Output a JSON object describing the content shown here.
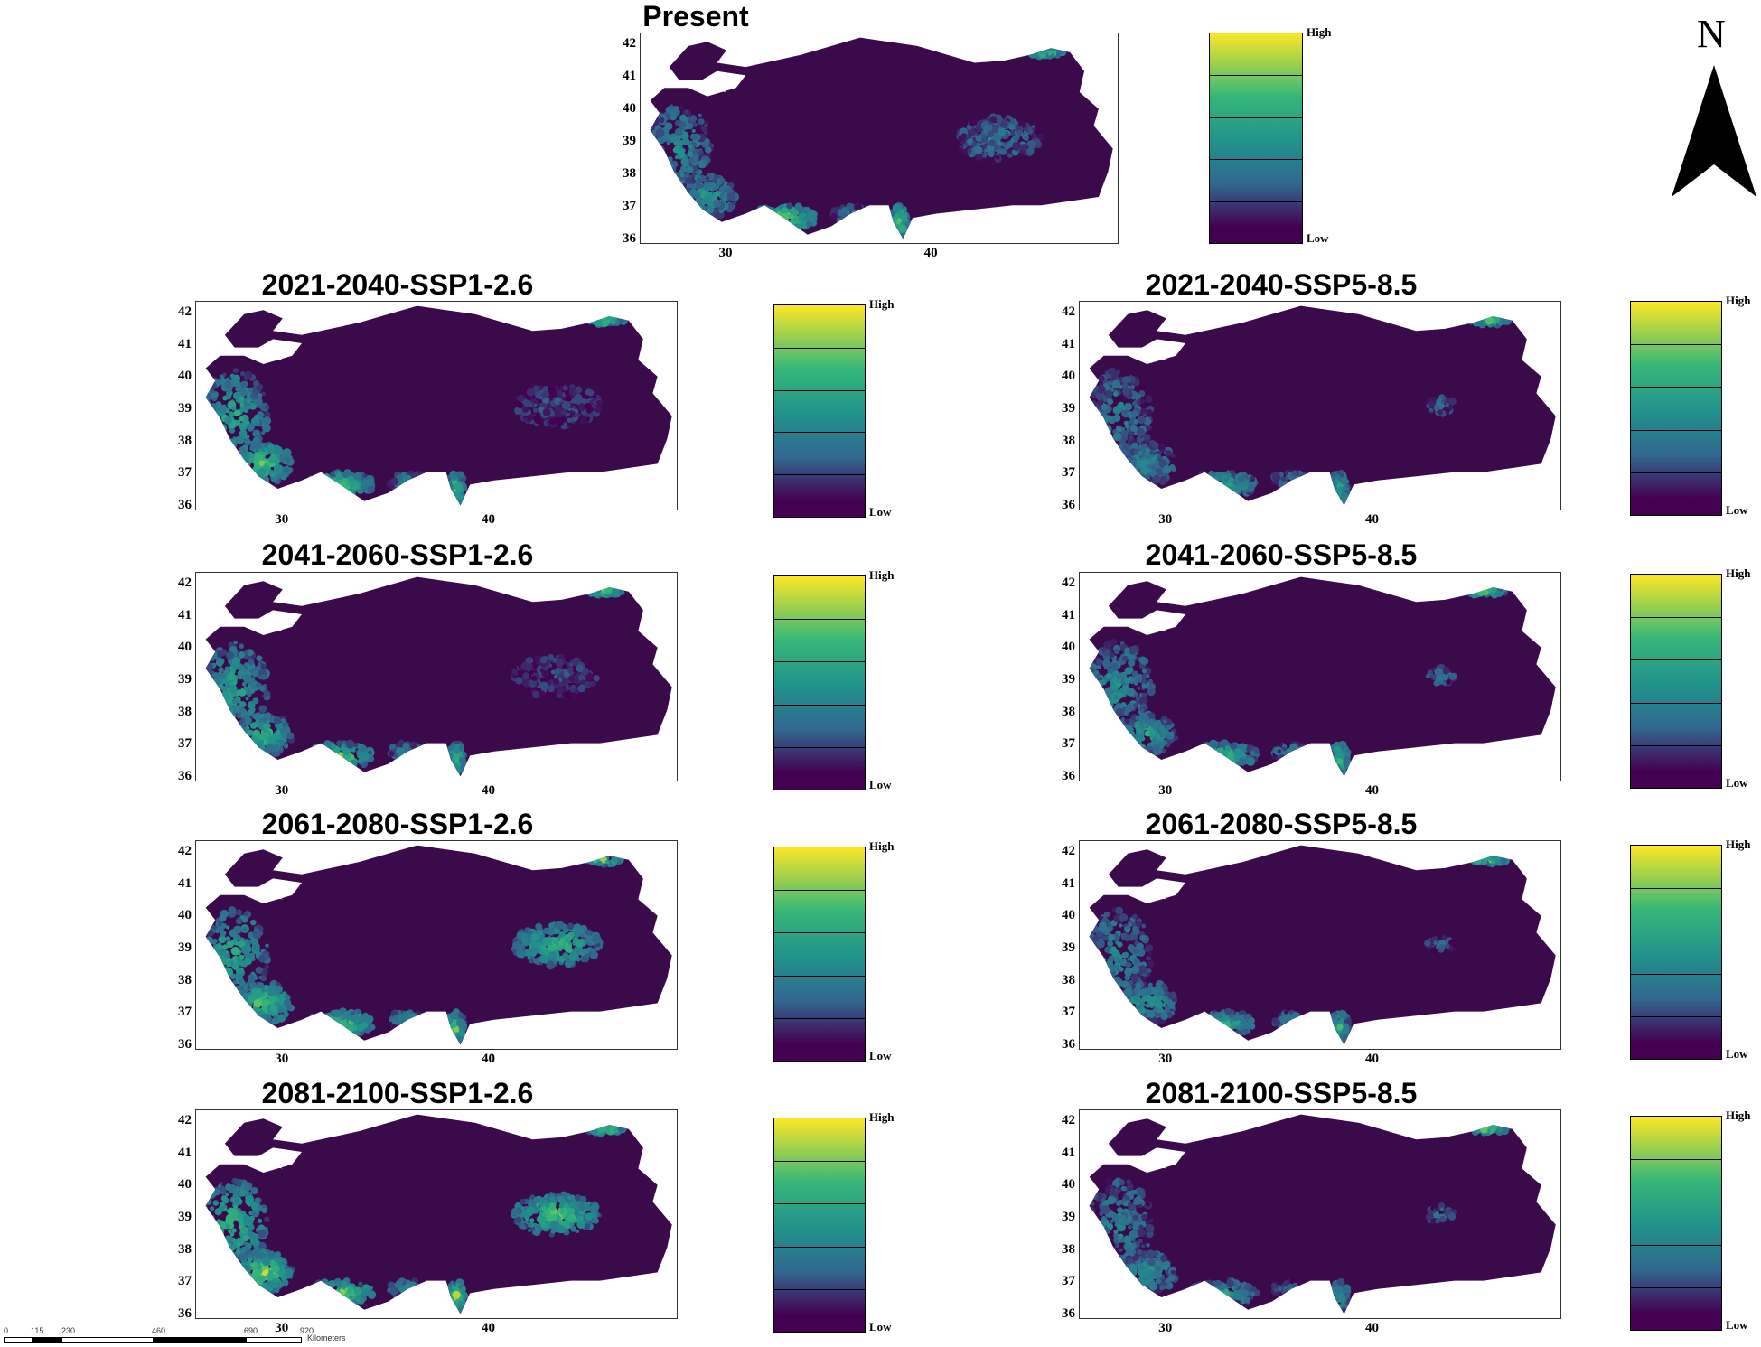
{
  "colors": {
    "low": "#440154",
    "mid_low": "#31688e",
    "mid": "#21918c",
    "mid_high": "#35b779",
    "high": "#fde725",
    "land": "#3a0a4a"
  },
  "legend": {
    "high_label": "High",
    "low_label": "Low"
  },
  "axes": {
    "lat_ticks": [
      "42",
      "41",
      "40",
      "39",
      "38",
      "37",
      "36"
    ],
    "lon_ticks": [
      "30",
      "40"
    ]
  },
  "north_arrow": {
    "label": "N"
  },
  "scale_bar": {
    "labels": [
      "0",
      "115",
      "230",
      "",
      "460",
      "",
      "690",
      "",
      "920"
    ],
    "unit": "Kilometers"
  },
  "panels": [
    {
      "title": "Present",
      "hotspots": {
        "west": 0.55,
        "south": 0.9,
        "east": 0.3,
        "inland": 0.35,
        "ne": 0.9
      }
    },
    {
      "title": "2021-2040-SSP1-2.6",
      "hotspots": {
        "west": 0.8,
        "south": 0.8,
        "east": 0.4,
        "inland": 0.15,
        "ne": 0.9
      }
    },
    {
      "title": "2021-2040-SSP5-8.5",
      "hotspots": {
        "west": 0.45,
        "south": 0.6,
        "east": 0.3,
        "inland": 0.1,
        "ne": 0.9
      }
    },
    {
      "title": "2041-2060-SSP1-2.6",
      "hotspots": {
        "west": 0.75,
        "south": 0.85,
        "east": 0.4,
        "inland": 0.15,
        "ne": 0.9
      }
    },
    {
      "title": "2041-2060-SSP5-8.5",
      "hotspots": {
        "west": 0.6,
        "south": 0.75,
        "east": 0.35,
        "inland": 0.1,
        "ne": 0.9
      }
    },
    {
      "title": "2061-2080-SSP1-2.6",
      "hotspots": {
        "west": 0.8,
        "south": 0.85,
        "east": 0.45,
        "inland": 0.75,
        "ne": 0.9
      }
    },
    {
      "title": "2061-2080-SSP5-8.5",
      "hotspots": {
        "west": 0.55,
        "south": 0.7,
        "east": 0.35,
        "inland": 0.1,
        "ne": 0.9
      }
    },
    {
      "title": "2081-2100-SSP1-2.6",
      "hotspots": {
        "west": 0.9,
        "south": 0.9,
        "east": 0.45,
        "inland": 0.8,
        "ne": 0.9
      }
    },
    {
      "title": "2081-2100-SSP5-8.5",
      "hotspots": {
        "west": 0.5,
        "south": 0.55,
        "east": 0.3,
        "inland": 0.1,
        "ne": 0.9
      }
    }
  ]
}
